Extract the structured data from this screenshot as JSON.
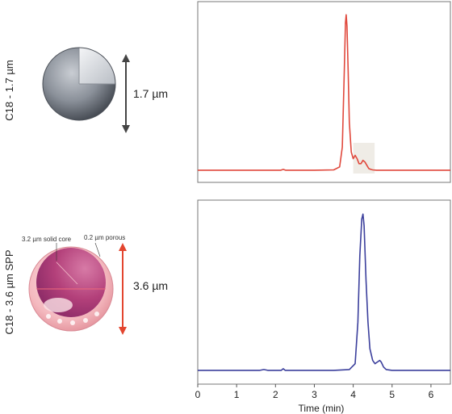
{
  "rows": [
    {
      "column_label": "C18 - 1.7 µm",
      "size_label": "1.7 µm",
      "core_label": "",
      "porous_label": "",
      "color": "#e0483c"
    },
    {
      "column_label": "C18 - 3.6 µm SPP",
      "size_label": "3.6 µm",
      "core_label": "3.2 µm solid core",
      "porous_label": "0.2 µm porous",
      "color": "#3b3f9c"
    }
  ],
  "chart_data": [
    {
      "type": "line",
      "title": "",
      "xlabel": "",
      "ylabel": "",
      "xlim": [
        0,
        6.5
      ],
      "ylim": [
        0,
        1.0
      ],
      "grid": false,
      "highlight_region": [
        4.0,
        4.55
      ],
      "series": [
        {
          "color": "#e0483c",
          "x": [
            0,
            1.0,
            2.0,
            2.14,
            2.2,
            2.26,
            3.0,
            3.5,
            3.65,
            3.72,
            3.77,
            3.8,
            3.82,
            3.84,
            3.87,
            3.9,
            3.95,
            4.0,
            4.05,
            4.1,
            4.15,
            4.2,
            4.25,
            4.3,
            4.35,
            4.4,
            4.45,
            4.5,
            4.6,
            4.8,
            5.0,
            6.0,
            6.5
          ],
          "y": [
            0.01,
            0.01,
            0.01,
            0.01,
            0.015,
            0.01,
            0.01,
            0.012,
            0.03,
            0.15,
            0.6,
            0.9,
            0.95,
            0.88,
            0.6,
            0.3,
            0.12,
            0.08,
            0.1,
            0.08,
            0.05,
            0.05,
            0.07,
            0.06,
            0.04,
            0.02,
            0.015,
            0.012,
            0.01,
            0.01,
            0.01,
            0.01,
            0.01
          ]
        }
      ]
    },
    {
      "type": "line",
      "title": "",
      "xlabel": "Time (min)",
      "ylabel": "",
      "xlim": [
        0,
        6.5
      ],
      "ylim": [
        0,
        1.0
      ],
      "grid": false,
      "x_ticks": [
        0,
        1,
        2,
        3,
        4,
        5,
        6
      ],
      "series": [
        {
          "color": "#3b3f9c",
          "x": [
            0,
            1.0,
            1.6,
            1.7,
            1.8,
            2.0,
            2.15,
            2.2,
            2.25,
            2.5,
            3.0,
            3.5,
            3.9,
            4.05,
            4.12,
            4.17,
            4.22,
            4.25,
            4.28,
            4.33,
            4.38,
            4.43,
            4.5,
            4.56,
            4.62,
            4.68,
            4.72,
            4.78,
            4.85,
            5.0,
            6.0,
            6.5
          ],
          "y": [
            0.01,
            0.01,
            0.01,
            0.015,
            0.01,
            0.01,
            0.01,
            0.02,
            0.01,
            0.01,
            0.01,
            0.01,
            0.015,
            0.05,
            0.3,
            0.7,
            0.92,
            0.95,
            0.88,
            0.55,
            0.3,
            0.14,
            0.07,
            0.05,
            0.06,
            0.07,
            0.06,
            0.03,
            0.015,
            0.01,
            0.01,
            0.01
          ]
        }
      ]
    }
  ]
}
